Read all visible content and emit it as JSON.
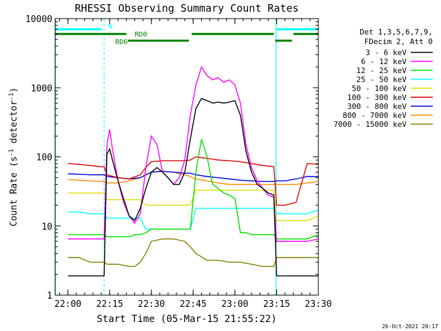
{
  "chart_data": {
    "type": "line",
    "title": "RHESSI Observing Summary Count Rates",
    "xlabel": "Start Time (05-Mar-15 21:55:22)",
    "ylabel": "Count Rate (s^-1 detector^-1)",
    "ylabel_parts": {
      "base": "Count Rate (s",
      "sup1": "-1",
      "mid": " detector",
      "sup2": "-1",
      "end": ")"
    },
    "yscale": "log",
    "ylim": [
      1,
      10000
    ],
    "xlim_min": [
      1315.4,
      2372
    ],
    "x_ticks": [
      "22:00",
      "22:15",
      "22:30",
      "22:45",
      "23:00",
      "23:15",
      "23:30"
    ],
    "x_tick_values_min": [
      1320,
      1335,
      1350,
      1365,
      1380,
      1395,
      1410
    ],
    "y_ticks": [
      "1",
      "10",
      "100",
      "1000",
      "10000"
    ],
    "y_tick_values": [
      1,
      10,
      100,
      1000,
      10000
    ],
    "legend_header": [
      "Det 1,3,5,6,7,9,",
      "FDecim 2, Att 0"
    ],
    "legend_position": "right",
    "series": [
      {
        "name": "3 - 6 keV",
        "color": "#000000",
        "x": [
          1320,
          1322,
          1324,
          1326,
          1328,
          1330,
          1332,
          1333,
          1334,
          1335,
          1336,
          1338,
          1340,
          1342,
          1344,
          1346,
          1348,
          1350,
          1352,
          1354,
          1356,
          1358,
          1360,
          1362,
          1364,
          1366,
          1368,
          1370,
          1372,
          1374,
          1376,
          1378,
          1380,
          1382,
          1384,
          1386,
          1388,
          1390,
          1392,
          1394,
          1395,
          1396,
          1398,
          1400,
          1402,
          1404,
          1406,
          1408,
          1410
        ],
        "y": [
          1.9,
          1.9,
          1.9,
          1.9,
          1.9,
          1.9,
          1.9,
          1.9,
          110,
          130,
          90,
          45,
          25,
          14,
          12,
          18,
          35,
          60,
          70,
          60,
          50,
          40,
          40,
          60,
          180,
          500,
          700,
          650,
          600,
          620,
          600,
          620,
          650,
          400,
          120,
          60,
          40,
          35,
          30,
          28,
          1.9,
          1.9,
          1.9,
          1.9,
          1.9,
          1.9,
          1.9,
          1.9,
          1.9
        ]
      },
      {
        "name": "6 - 12 keV",
        "color": "#ff00ff",
        "x": [
          1320,
          1324,
          1328,
          1332,
          1333,
          1334,
          1335,
          1336,
          1338,
          1340,
          1342,
          1344,
          1346,
          1348,
          1350,
          1352,
          1354,
          1356,
          1358,
          1360,
          1362,
          1364,
          1366,
          1368,
          1370,
          1372,
          1374,
          1376,
          1378,
          1380,
          1382,
          1384,
          1386,
          1388,
          1390,
          1392,
          1394,
          1395,
          1398,
          1402,
          1406,
          1410
        ],
        "y": [
          6.5,
          6.5,
          6.5,
          6.5,
          6.5,
          150,
          250,
          130,
          45,
          22,
          14,
          11,
          15,
          70,
          200,
          150,
          60,
          50,
          40,
          50,
          90,
          400,
          1100,
          2000,
          1500,
          1300,
          1400,
          1200,
          1300,
          1100,
          600,
          150,
          70,
          45,
          35,
          28,
          26,
          6,
          6,
          6,
          6,
          6.5
        ]
      },
      {
        "name": "12 - 25 keV",
        "color": "#00dd00",
        "x": [
          1320,
          1324,
          1328,
          1332,
          1333,
          1334,
          1336,
          1338,
          1340,
          1342,
          1344,
          1346,
          1348,
          1350,
          1352,
          1354,
          1356,
          1358,
          1360,
          1362,
          1364,
          1366,
          1368,
          1370,
          1372,
          1374,
          1376,
          1378,
          1380,
          1382,
          1384,
          1386,
          1388,
          1390,
          1392,
          1394,
          1395,
          1398,
          1402,
          1406,
          1410
        ],
        "y": [
          7.5,
          7.5,
          7.5,
          7.5,
          7.5,
          7,
          7,
          7,
          7,
          7,
          7.5,
          7.5,
          8,
          9,
          9,
          9,
          9,
          9,
          9,
          9,
          9,
          60,
          180,
          100,
          40,
          35,
          30,
          28,
          25,
          8,
          8,
          7.5,
          7.5,
          7.5,
          7.5,
          7.5,
          6.5,
          6.5,
          6.5,
          6.5,
          7.5
        ]
      },
      {
        "name": "25 - 50 keV",
        "color": "#00ffff",
        "x": [
          1320,
          1324,
          1328,
          1332,
          1333,
          1334,
          1338,
          1342,
          1346,
          1348,
          1350,
          1354,
          1358,
          1362,
          1364,
          1366,
          1370,
          1374,
          1378,
          1382,
          1386,
          1390,
          1394,
          1395,
          1398,
          1402,
          1406,
          1410
        ],
        "y": [
          16,
          16,
          15,
          15,
          15,
          13,
          13,
          13,
          13,
          9,
          9,
          9,
          9,
          9,
          9,
          18,
          18,
          18,
          18,
          18,
          18,
          18,
          18,
          15,
          15,
          15,
          15,
          17
        ]
      },
      {
        "name": "50 - 100 keV",
        "color": "#dddd00",
        "x": [
          1320,
          1324,
          1328,
          1332,
          1333,
          1334,
          1338,
          1342,
          1346,
          1348,
          1350,
          1354,
          1358,
          1362,
          1364,
          1366,
          1370,
          1374,
          1378,
          1382,
          1386,
          1390,
          1394,
          1395,
          1398,
          1402,
          1406,
          1410
        ],
        "y": [
          30,
          30,
          30,
          30,
          30,
          24,
          24,
          24,
          24,
          20,
          20,
          20,
          20,
          20,
          20,
          33,
          33,
          33,
          33,
          33,
          33,
          33,
          33,
          12,
          12,
          12,
          12,
          14
        ]
      },
      {
        "name": "100 - 300 keV",
        "color": "#dd0000",
        "x": [
          1320,
          1324,
          1328,
          1332,
          1333,
          1334,
          1338,
          1342,
          1346,
          1348,
          1350,
          1354,
          1358,
          1362,
          1364,
          1366,
          1370,
          1374,
          1378,
          1382,
          1386,
          1390,
          1394,
          1395,
          1398,
          1402,
          1406,
          1410
        ],
        "y": [
          80,
          78,
          75,
          72,
          72,
          55,
          50,
          48,
          55,
          70,
          85,
          88,
          88,
          88,
          90,
          100,
          95,
          90,
          88,
          85,
          80,
          75,
          72,
          20,
          20,
          22,
          80,
          78
        ]
      },
      {
        "name": "300 - 800 keV",
        "color": "#0000dd",
        "x": [
          1320,
          1324,
          1328,
          1332,
          1333,
          1334,
          1338,
          1342,
          1346,
          1348,
          1350,
          1354,
          1358,
          1362,
          1364,
          1366,
          1370,
          1374,
          1378,
          1382,
          1386,
          1390,
          1394,
          1395,
          1398,
          1402,
          1406,
          1410
        ],
        "y": [
          57,
          56,
          55,
          55,
          55,
          52,
          50,
          48,
          50,
          55,
          60,
          62,
          60,
          58,
          58,
          55,
          52,
          50,
          48,
          46,
          45,
          44,
          44,
          45,
          45,
          48,
          52,
          52
        ]
      },
      {
        "name": "800 - 7000 keV",
        "color": "#ff8800",
        "x": [
          1320,
          1324,
          1328,
          1332,
          1333,
          1334,
          1338,
          1342,
          1346,
          1348,
          1350,
          1354,
          1358,
          1362,
          1364,
          1366,
          1370,
          1374,
          1378,
          1382,
          1386,
          1390,
          1394,
          1395,
          1398,
          1402,
          1406,
          1410
        ],
        "y": [
          47,
          46,
          45,
          44,
          44,
          42,
          42,
          45,
          50,
          55,
          60,
          62,
          60,
          55,
          52,
          48,
          45,
          42,
          40,
          40,
          40,
          40,
          40,
          40,
          40,
          40,
          42,
          44
        ]
      },
      {
        "name": "7000 - 15000 keV",
        "color": "#808000",
        "x": [
          1320,
          1324,
          1328,
          1332,
          1333,
          1334,
          1338,
          1342,
          1344,
          1346,
          1348,
          1350,
          1354,
          1358,
          1362,
          1364,
          1366,
          1370,
          1374,
          1378,
          1382,
          1386,
          1390,
          1394,
          1395,
          1398,
          1402,
          1406,
          1410
        ],
        "y": [
          3.5,
          3.5,
          3,
          3,
          3,
          2.8,
          2.8,
          2.6,
          2.6,
          3,
          4,
          6,
          6.5,
          6.5,
          6,
          5,
          4,
          3.2,
          3.2,
          3,
          3,
          2.8,
          2.6,
          2.6,
          3.5,
          3.5,
          3.5,
          3.5,
          3.5
        ]
      }
    ],
    "flags": [
      {
        "label": "N",
        "color": "#00ffff",
        "value": 7000,
        "segments": [
          [
            1315.4,
            1332
          ],
          [
            1394.8,
            1410
          ]
        ]
      },
      {
        "label": "RD0",
        "color": "#008000",
        "value": 6000,
        "segments": [
          [
            1315.4,
            1341
          ],
          [
            1364.5,
            1394
          ],
          [
            1401,
            1410
          ]
        ]
      },
      {
        "label": "RD6",
        "color": "#008000",
        "value": 4800,
        "segments": [
          [
            1341.5,
            1363.5
          ],
          [
            1394.5,
            1400.5
          ]
        ]
      }
    ],
    "vlines": {
      "color": "#00ffff",
      "solid_min": [
        1315.5,
        1394.8
      ],
      "dashed_min": [
        1333,
        1410
      ]
    }
  },
  "footer": {
    "timestamp": "26-Oct-2021 20:17"
  }
}
